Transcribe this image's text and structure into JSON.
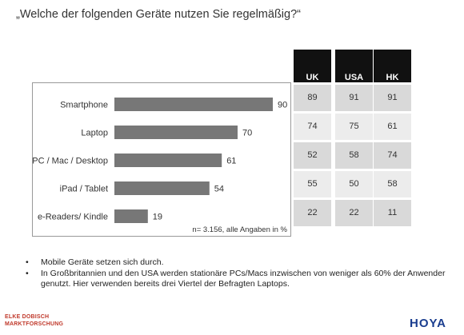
{
  "title": "„Welche der folgenden Geräte nutzen Sie regelmäßig?“",
  "chart_data": {
    "type": "bar",
    "orientation": "horizontal",
    "categories": [
      "Smartphone",
      "Laptop",
      "PC / Mac / Desktop",
      "iPad / Tablet",
      "e-Readers/ Kindle"
    ],
    "values": [
      90,
      70,
      61,
      54,
      19
    ],
    "xlim": [
      0,
      100
    ],
    "grid": false,
    "note": "n= 3.156, alle Angaben in %",
    "colors": {
      "bar": "#777777"
    }
  },
  "table": {
    "headers": [
      "UK",
      "USA",
      "HK"
    ],
    "rows": [
      [
        "89",
        "91",
        "91"
      ],
      [
        "74",
        "75",
        "61"
      ],
      [
        "52",
        "58",
        "74"
      ],
      [
        "55",
        "50",
        "58"
      ],
      [
        "22",
        "22",
        "11"
      ]
    ]
  },
  "bullets": [
    "Mobile Geräte setzen sich durch.",
    "In Großbritannien und den USA werden stationäre PCs/Macs inzwischen von weniger als 60% der Anwender genutzt. Hier verwenden bereits drei Viertel der Befragten Laptops."
  ],
  "bullet_symbol": "•",
  "logos": {
    "left_line1": "ELKE DOBISCH",
    "left_line2": "MARKTFORSCHUNG",
    "right": "HOYA"
  }
}
